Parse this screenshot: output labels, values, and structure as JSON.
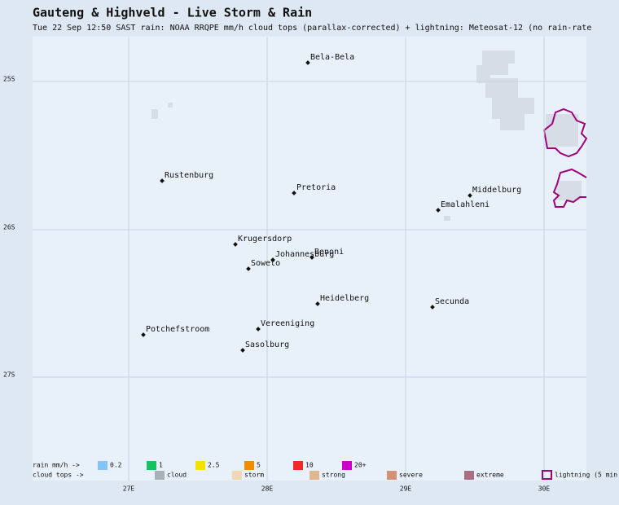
{
  "header": {
    "title": "Gauteng & Highveld - Live Storm & Rain",
    "subtitle": "Tue 22 Sep 12:50 SAST   rain: NOAA RRQPE mm/h   cloud tops (parallax-corrected) + lightning: Meteosat-12   (no rain-rate"
  },
  "map": {
    "lat_labels": [
      "25S",
      "26S",
      "27S"
    ],
    "lon_labels": [
      "27E",
      "28E",
      "29E",
      "30E"
    ],
    "cities": [
      "Bela-Bela",
      "Rustenburg",
      "Pretoria",
      "Middelburg",
      "Emalahleni",
      "Krugersdorp",
      "Johannesburg",
      "Benoni",
      "Soweto",
      "Heidelberg",
      "Secunda",
      "Potchefstroom",
      "Vereeniging",
      "Sasolburg"
    ]
  },
  "legend": {
    "rain_label": "rain mm/h ->",
    "rain": [
      {
        "label": "0.2",
        "color": "#82c4f5"
      },
      {
        "label": "1",
        "color": "#18c060"
      },
      {
        "label": "2.5",
        "color": "#f5e000"
      },
      {
        "label": "5",
        "color": "#f08c00"
      },
      {
        "label": "10",
        "color": "#f02828"
      },
      {
        "label": "20+",
        "color": "#c800c8"
      }
    ],
    "cloud_label": "cloud tops ->",
    "cloud": [
      {
        "label": "cloud",
        "color": "#a8b0ba"
      },
      {
        "label": "storm",
        "color": "#f0d8b4"
      },
      {
        "label": "strong",
        "color": "#e0b890"
      },
      {
        "label": "severe",
        "color": "#d49078"
      },
      {
        "label": "extreme",
        "color": "#a87080"
      }
    ],
    "lightning": {
      "label": "lightning (5 min",
      "color": "#a0007a"
    }
  }
}
